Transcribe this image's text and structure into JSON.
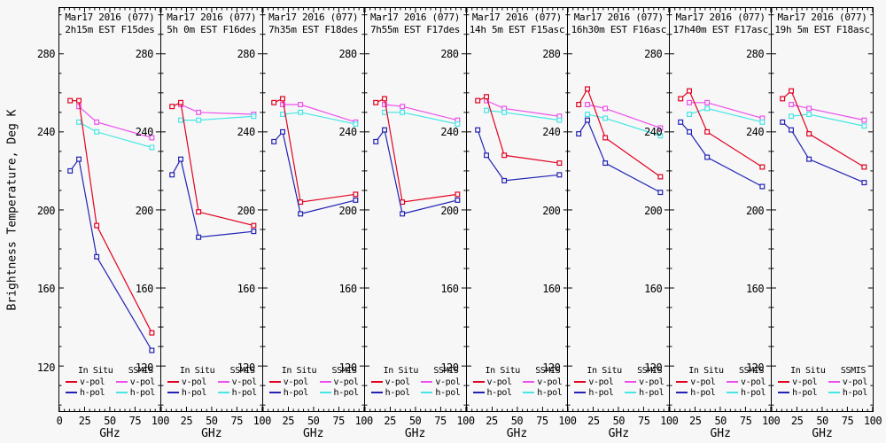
{
  "figure": {
    "y_axis_title": "Brightness Temperature, Deg K",
    "x_axis_title": "GHz",
    "colors": {
      "insitu_v": "#e1001f",
      "insitu_h": "#2121b4",
      "ssmis_v": "#ed4fed",
      "ssmis_h": "#45e6e6"
    },
    "legend": {
      "col1_header": "In Situ",
      "col2_header": "SSMIS",
      "vpol_label": "v-pol",
      "hpol_label": "h-pol"
    }
  },
  "chart_data": {
    "type": "line",
    "title": "Mar17 2016 (077)",
    "xlabel": "GHz",
    "ylabel": "Brightness Temperature, Deg K",
    "xlim": [
      0,
      100
    ],
    "ylim_display": [
      96.9,
      303.5
    ],
    "x_major_ticks": [
      0,
      25,
      50,
      75,
      100
    ],
    "x_minor_step": 5,
    "y_major_ticks": [
      280,
      240,
      200,
      160,
      120
    ],
    "y_minor_step": 10,
    "y_minor_range": [
      100,
      300
    ],
    "grid": false,
    "legend_position": "bottom-inside-each-panel",
    "marker": "open-square",
    "in_situ_frequencies_ghz": [
      10.7,
      19.35,
      37.0,
      91.655
    ],
    "ssmis_frequencies_ghz": [
      19.35,
      37.0,
      91.655
    ],
    "series_defs": [
      {
        "key": "ssmis_v",
        "name": "SSMIS v-pol",
        "color_key": "ssmis_v",
        "freqs": "ssmis"
      },
      {
        "key": "ssmis_h",
        "name": "SSMIS h-pol",
        "color_key": "ssmis_h",
        "freqs": "ssmis"
      },
      {
        "key": "insitu_v",
        "name": "In Situ v-pol",
        "color_key": "insitu_v",
        "freqs": "in_situ"
      },
      {
        "key": "insitu_h",
        "name": "In Situ h-pol",
        "color_key": "insitu_h",
        "freqs": "in_situ"
      }
    ],
    "panels": [
      {
        "title": "Mar17 2016 (077)",
        "subtitle": "2h15m EST F15des",
        "insitu_v": [
          256,
          256,
          192,
          137
        ],
        "insitu_h": [
          220,
          226,
          176,
          128
        ],
        "ssmis_v": [
          253,
          245,
          237
        ],
        "ssmis_h": [
          245,
          240,
          232
        ]
      },
      {
        "title": "Mar17 2016 (077)",
        "subtitle": "5h 0m EST F16des",
        "insitu_v": [
          253,
          255,
          199,
          192
        ],
        "insitu_h": [
          218,
          226,
          186,
          189
        ],
        "ssmis_v": [
          254,
          250,
          249
        ],
        "ssmis_h": [
          246,
          246,
          248
        ]
      },
      {
        "title": "Mar17 2016 (077)",
        "subtitle": "7h35m EST F18des",
        "insitu_v": [
          255,
          257,
          204,
          208
        ],
        "insitu_h": [
          235,
          240,
          198,
          205
        ],
        "ssmis_v": [
          254,
          254,
          245
        ],
        "ssmis_h": [
          249,
          250,
          244
        ]
      },
      {
        "title": "Mar17 2016 (077)",
        "subtitle": "7h55m EST F17des",
        "insitu_v": [
          255,
          257,
          204,
          208
        ],
        "insitu_h": [
          235,
          241,
          198,
          205
        ],
        "ssmis_v": [
          254,
          253,
          246
        ],
        "ssmis_h": [
          250,
          250,
          244
        ]
      },
      {
        "title": "Mar17 2016 (077)",
        "subtitle": "14h 5m EST F15asc",
        "insitu_v": [
          256,
          258,
          228,
          224
        ],
        "insitu_h": [
          241,
          228,
          215,
          218
        ],
        "ssmis_v": [
          256,
          252,
          248
        ],
        "ssmis_h": [
          251,
          250,
          246
        ]
      },
      {
        "title": "Mar17 2016 (077)",
        "subtitle": "16h30m EST F16asc",
        "insitu_v": [
          254,
          262,
          237,
          217
        ],
        "insitu_h": [
          239,
          246,
          224,
          209
        ],
        "ssmis_v": [
          254,
          252,
          242
        ],
        "ssmis_h": [
          249,
          247,
          238
        ]
      },
      {
        "title": "Mar17 2016 (077)",
        "subtitle": "17h40m EST F17asc",
        "insitu_v": [
          257,
          261,
          240,
          222
        ],
        "insitu_h": [
          245,
          240,
          227,
          212
        ],
        "ssmis_v": [
          255,
          255,
          247
        ],
        "ssmis_h": [
          249,
          252,
          245
        ]
      },
      {
        "title": "Mar17 2016 (077)",
        "subtitle": "19h 5m EST F18asc",
        "insitu_v": [
          257,
          261,
          239,
          222
        ],
        "insitu_h": [
          245,
          241,
          226,
          214
        ],
        "ssmis_v": [
          254,
          252,
          246
        ],
        "ssmis_h": [
          248,
          249,
          243
        ]
      }
    ]
  }
}
